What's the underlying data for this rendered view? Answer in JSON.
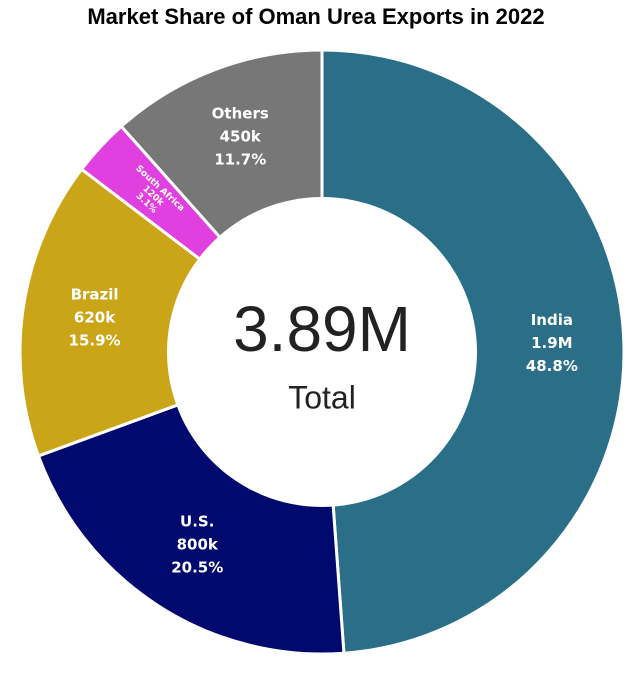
{
  "chart_data": {
    "type": "donut",
    "title": "Market Share of Oman Urea Exports in 2022",
    "categories": [
      "India",
      "U.S.",
      "Brazil",
      "South Africa",
      "Others"
    ],
    "values": [
      1900000,
      800000,
      620000,
      120000,
      450000
    ],
    "value_labels": [
      "1.9M",
      "800k",
      "620k",
      "120k",
      "450k"
    ],
    "percent_labels": [
      "48.8%",
      "20.5%",
      "15.9%",
      "3.1%",
      "11.7%"
    ],
    "colors": [
      "#2a6f87",
      "#000a6e",
      "#c9a517",
      "#e040e0",
      "#777777"
    ],
    "center_value": "3.89M",
    "center_label": "Total"
  }
}
